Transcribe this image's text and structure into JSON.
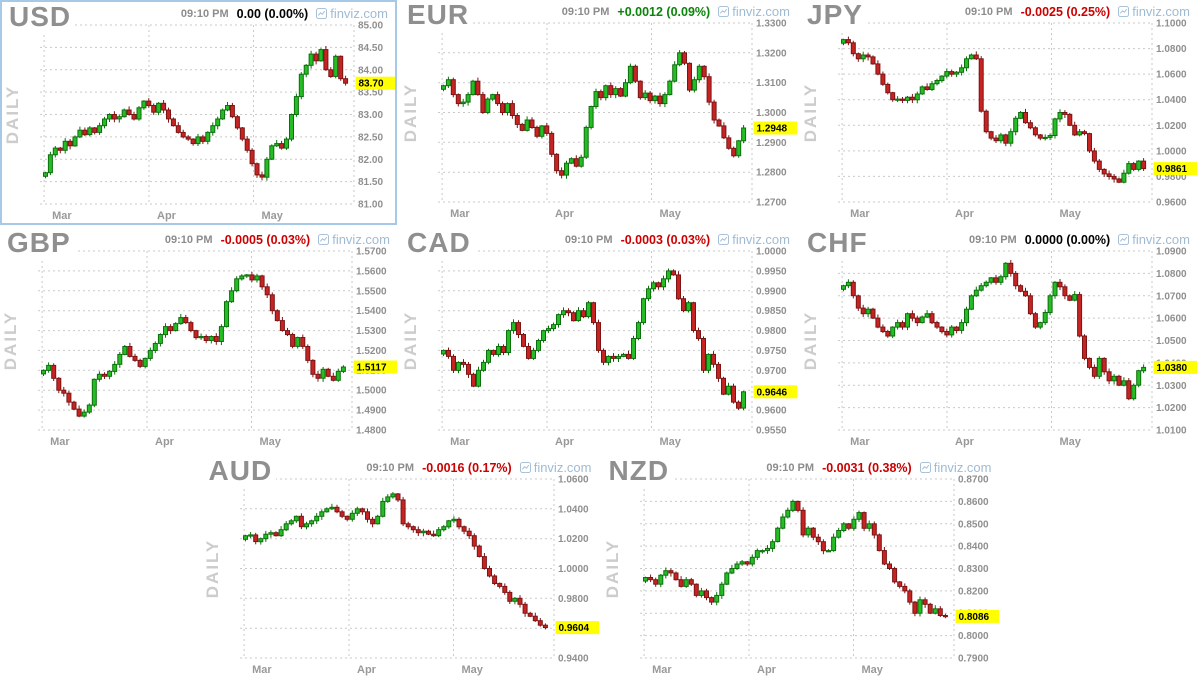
{
  "branding": {
    "site": "finviz.com",
    "brand_blue": "#9FBBD4"
  },
  "colors": {
    "up_body": "#25BC25",
    "up_border": "#0C700C",
    "down_body": "#C62323",
    "down_border": "#7C1414",
    "highlight": "#FFFF00",
    "change_up": "#0A840A",
    "change_down": "#CC0000",
    "change_flat": "#000000",
    "grid": "#C9C9C9",
    "selected_border": "#A6C9E8"
  },
  "chart_data": [
    {
      "type": "candlestick",
      "symbol": "USD",
      "timeframe_label": "DAILY",
      "time": "09:10 PM",
      "change": "0.00 (0.00%)",
      "sentiment": "flat",
      "last_price": "83.70",
      "selected": true,
      "ylim": [
        81.0,
        85.0
      ],
      "y_ticks": [
        "85.00",
        "84.50",
        "84.00",
        "83.50",
        "83.00",
        "82.50",
        "82.00",
        "81.50",
        "81.00"
      ],
      "x_months": [
        "Mar",
        "Apr",
        "May"
      ],
      "closes": [
        81.7,
        82.1,
        82.25,
        82.2,
        82.4,
        82.3,
        82.5,
        82.65,
        82.55,
        82.7,
        82.6,
        82.75,
        82.9,
        83.0,
        82.9,
        82.95,
        83.1,
        83.0,
        82.9,
        83.15,
        83.3,
        83.2,
        83.05,
        83.25,
        83.1,
        82.9,
        82.75,
        82.6,
        82.5,
        82.45,
        82.35,
        82.5,
        82.4,
        82.6,
        82.75,
        82.9,
        83.1,
        83.2,
        82.95,
        82.7,
        82.45,
        82.2,
        81.9,
        81.65,
        81.6,
        82.0,
        82.3,
        82.35,
        82.25,
        82.45,
        83.0,
        83.4,
        83.9,
        84.1,
        84.35,
        84.2,
        84.45,
        84.0,
        83.85,
        84.3,
        83.8,
        83.7
      ]
    },
    {
      "type": "candlestick",
      "symbol": "EUR",
      "timeframe_label": "DAILY",
      "time": "09:10 PM",
      "change": "+0.0012 (0.09%)",
      "sentiment": "up",
      "last_price": "1.2948",
      "selected": false,
      "ylim": [
        1.27,
        1.33
      ],
      "y_ticks": [
        "1.3300",
        "1.3200",
        "1.3100",
        "1.3000",
        "1.2900",
        "1.2800",
        "1.2700"
      ],
      "x_months": [
        "Mar",
        "Apr",
        "May"
      ],
      "closes": [
        1.309,
        1.311,
        1.306,
        1.303,
        1.3035,
        1.306,
        1.3105,
        1.306,
        1.3,
        1.3045,
        1.306,
        1.303,
        1.3,
        1.303,
        1.299,
        1.296,
        1.294,
        1.2975,
        1.295,
        1.292,
        1.2955,
        1.293,
        1.286,
        1.2805,
        1.279,
        1.283,
        1.2845,
        1.282,
        1.285,
        1.295,
        1.302,
        1.307,
        1.305,
        1.309,
        1.306,
        1.308,
        1.3055,
        1.31,
        1.3155,
        1.3105,
        1.305,
        1.3065,
        1.304,
        1.3055,
        1.303,
        1.306,
        1.3105,
        1.316,
        1.32,
        1.3165,
        1.3075,
        1.311,
        1.3155,
        1.312,
        1.3035,
        1.2975,
        1.2955,
        1.2915,
        1.288,
        1.2855,
        1.2905,
        1.2948
      ]
    },
    {
      "type": "candlestick",
      "symbol": "JPY",
      "timeframe_label": "DAILY",
      "time": "09:10 PM",
      "change": "-0.0025 (0.25%)",
      "sentiment": "down",
      "last_price": "0.9861",
      "selected": false,
      "ylim": [
        0.96,
        1.1
      ],
      "y_ticks": [
        "1.1000",
        "1.0800",
        "1.0600",
        "1.0400",
        "1.0200",
        "1.0000",
        "0.9800",
        "0.9600"
      ],
      "x_months": [
        "Mar",
        "Apr",
        "May"
      ],
      "closes": [
        1.087,
        1.0845,
        1.076,
        1.072,
        1.075,
        1.0735,
        1.068,
        1.06,
        1.052,
        1.0455,
        1.04,
        1.0405,
        1.0395,
        1.042,
        1.04,
        1.0445,
        1.05,
        1.048,
        1.0525,
        1.055,
        1.0585,
        1.062,
        1.06,
        1.0615,
        1.065,
        1.072,
        1.075,
        1.072,
        1.031,
        1.015,
        1.01,
        1.008,
        1.0125,
        1.006,
        1.015,
        1.0255,
        1.03,
        1.022,
        1.018,
        1.0125,
        1.01,
        1.0105,
        1.012,
        1.025,
        1.03,
        1.0285,
        1.02,
        1.0125,
        1.015,
        1.0135,
        1.0,
        0.992,
        0.9855,
        0.982,
        0.98,
        0.978,
        0.9755,
        0.9825,
        0.99,
        0.9855,
        0.992,
        0.9861
      ]
    },
    {
      "type": "candlestick",
      "symbol": "GBP",
      "timeframe_label": "DAILY",
      "time": "09:10 PM",
      "change": "-0.0005 (0.03%)",
      "sentiment": "down",
      "last_price": "1.5117",
      "selected": false,
      "ylim": [
        1.48,
        1.57
      ],
      "y_ticks": [
        "1.5700",
        "1.5600",
        "1.5500",
        "1.5400",
        "1.5300",
        "1.5200",
        "1.5100",
        "1.5000",
        "1.4900",
        "1.4800"
      ],
      "x_months": [
        "Mar",
        "Apr",
        "May"
      ],
      "closes": [
        1.51,
        1.5125,
        1.506,
        1.5,
        1.4985,
        1.494,
        1.4905,
        1.487,
        1.489,
        1.4925,
        1.5055,
        1.508,
        1.507,
        1.5095,
        1.513,
        1.518,
        1.522,
        1.517,
        1.515,
        1.512,
        1.516,
        1.52,
        1.5235,
        1.528,
        1.532,
        1.53,
        1.5335,
        1.5365,
        1.534,
        1.53,
        1.5265,
        1.527,
        1.525,
        1.527,
        1.5245,
        1.532,
        1.5445,
        1.55,
        1.556,
        1.5575,
        1.558,
        1.5555,
        1.5575,
        1.552,
        1.548,
        1.54,
        1.535,
        1.53,
        1.528,
        1.522,
        1.5265,
        1.522,
        1.515,
        1.508,
        1.506,
        1.5105,
        1.507,
        1.505,
        1.5095,
        1.5117
      ]
    },
    {
      "type": "candlestick",
      "symbol": "CAD",
      "timeframe_label": "DAILY",
      "time": "09:10 PM",
      "change": "-0.0003 (0.03%)",
      "sentiment": "down",
      "last_price": "0.9646",
      "selected": false,
      "ylim": [
        0.955,
        1.0
      ],
      "y_ticks": [
        "1.0000",
        "0.9950",
        "0.9900",
        "0.9850",
        "0.9800",
        "0.9750",
        "0.9700",
        "0.9650",
        "0.9600",
        "0.9550"
      ],
      "x_months": [
        "Mar",
        "Apr",
        "May"
      ],
      "closes": [
        0.975,
        0.9735,
        0.97,
        0.972,
        0.9715,
        0.969,
        0.966,
        0.97,
        0.972,
        0.975,
        0.974,
        0.976,
        0.9745,
        0.98,
        0.982,
        0.979,
        0.976,
        0.973,
        0.975,
        0.9775,
        0.98,
        0.9805,
        0.9815,
        0.984,
        0.985,
        0.9845,
        0.9825,
        0.985,
        0.9835,
        0.987,
        0.982,
        0.975,
        0.972,
        0.9735,
        0.973,
        0.9735,
        0.974,
        0.973,
        0.978,
        0.982,
        0.988,
        0.9905,
        0.992,
        0.991,
        0.993,
        0.995,
        0.994,
        0.988,
        0.985,
        0.987,
        0.98,
        0.978,
        0.97,
        0.974,
        0.9715,
        0.968,
        0.964,
        0.966,
        0.962,
        0.9605,
        0.9646
      ]
    },
    {
      "type": "candlestick",
      "symbol": "CHF",
      "timeframe_label": "DAILY",
      "time": "09:10 PM",
      "change": "0.0000 (0.00%)",
      "sentiment": "flat",
      "last_price": "1.0380",
      "selected": false,
      "ylim": [
        1.01,
        1.09
      ],
      "y_ticks": [
        "1.0900",
        "1.0800",
        "1.0700",
        "1.0600",
        "1.0500",
        "1.0400",
        "1.0300",
        "1.0200",
        "1.0100"
      ],
      "x_months": [
        "Mar",
        "Apr",
        "May"
      ],
      "closes": [
        1.0745,
        1.076,
        1.07,
        1.0645,
        1.062,
        1.064,
        1.06,
        1.056,
        1.054,
        1.052,
        1.056,
        1.058,
        1.056,
        1.062,
        1.06,
        1.058,
        1.0605,
        1.062,
        1.058,
        1.056,
        1.054,
        1.0525,
        1.056,
        1.0545,
        1.058,
        1.064,
        1.07,
        1.0725,
        1.0745,
        1.076,
        1.078,
        1.076,
        1.0785,
        1.0845,
        1.08,
        1.0745,
        1.072,
        1.07,
        1.062,
        1.056,
        1.058,
        1.0625,
        1.07,
        1.076,
        1.074,
        1.07,
        1.068,
        1.0705,
        1.052,
        1.042,
        1.038,
        1.034,
        1.042,
        1.036,
        1.032,
        1.034,
        1.03,
        1.032,
        1.024,
        1.03,
        1.0365,
        1.038
      ]
    },
    {
      "type": "candlestick",
      "symbol": "AUD",
      "timeframe_label": "DAILY",
      "time": "09:10 PM",
      "change": "-0.0016 (0.17%)",
      "sentiment": "down",
      "last_price": "0.9604",
      "selected": false,
      "ylim": [
        0.94,
        1.06
      ],
      "y_ticks": [
        "1.0600",
        "1.0400",
        "1.0200",
        "1.0000",
        "0.9800",
        "0.9600",
        "0.9400"
      ],
      "x_months": [
        "Mar",
        "Apr",
        "May"
      ],
      "closes": [
        1.022,
        1.0225,
        1.018,
        1.02,
        1.023,
        1.024,
        1.022,
        1.026,
        1.03,
        1.032,
        1.035,
        1.028,
        1.03,
        1.032,
        1.035,
        1.038,
        1.04,
        1.041,
        1.038,
        1.035,
        1.033,
        1.037,
        1.04,
        1.038,
        1.033,
        1.03,
        1.035,
        1.045,
        1.048,
        1.05,
        1.046,
        1.03,
        1.028,
        1.026,
        1.024,
        1.025,
        1.023,
        1.022,
        1.026,
        1.028,
        1.032,
        1.033,
        1.028,
        1.025,
        1.022,
        1.015,
        1.008,
        1.0,
        0.995,
        0.99,
        0.988,
        0.984,
        0.978,
        0.98,
        0.976,
        0.97,
        0.968,
        0.965,
        0.962,
        0.9604
      ]
    },
    {
      "type": "candlestick",
      "symbol": "NZD",
      "timeframe_label": "DAILY",
      "time": "09:10 PM",
      "change": "-0.0031 (0.38%)",
      "sentiment": "down",
      "last_price": "0.8086",
      "selected": false,
      "ylim": [
        0.79,
        0.87
      ],
      "y_ticks": [
        "0.8700",
        "0.8600",
        "0.8500",
        "0.8400",
        "0.8300",
        "0.8200",
        "0.8100",
        "0.8000",
        "0.7900"
      ],
      "x_months": [
        "Mar",
        "Apr",
        "May"
      ],
      "closes": [
        0.826,
        0.825,
        0.823,
        0.827,
        0.829,
        0.828,
        0.825,
        0.822,
        0.825,
        0.823,
        0.818,
        0.82,
        0.817,
        0.815,
        0.818,
        0.823,
        0.828,
        0.83,
        0.832,
        0.833,
        0.832,
        0.835,
        0.838,
        0.838,
        0.839,
        0.842,
        0.848,
        0.853,
        0.856,
        0.86,
        0.856,
        0.845,
        0.848,
        0.844,
        0.842,
        0.838,
        0.838,
        0.844,
        0.847,
        0.85,
        0.848,
        0.852,
        0.855,
        0.848,
        0.85,
        0.845,
        0.838,
        0.832,
        0.83,
        0.824,
        0.822,
        0.82,
        0.815,
        0.81,
        0.816,
        0.814,
        0.81,
        0.812,
        0.809,
        0.8086
      ]
    }
  ]
}
